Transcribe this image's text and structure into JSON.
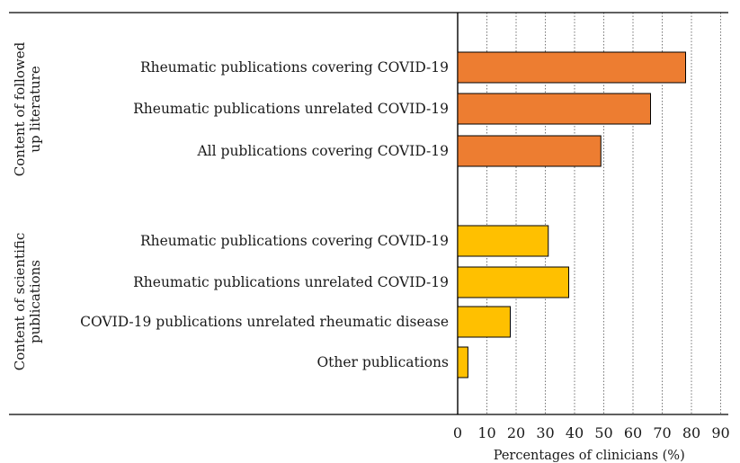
{
  "chart_data": {
    "type": "bar",
    "orientation": "horizontal",
    "xlabel": "Percentages of clinicians (%)",
    "xlim": [
      0,
      90
    ],
    "xticks": [
      0,
      10,
      20,
      30,
      40,
      50,
      60,
      70,
      80,
      90
    ],
    "grid": "vertical dotted",
    "groups": [
      {
        "label": "Content of followed up literature",
        "color": "#ED7D31",
        "items": [
          {
            "label": "Rheumatic publications covering COVID-19",
            "value": 78
          },
          {
            "label": "Rheumatic publications unrelated COVID-19",
            "value": 66
          },
          {
            "label": "All publications covering COVID-19",
            "value": 49
          }
        ]
      },
      {
        "label": "Content of scientific publications",
        "color": "#FFC000",
        "items": [
          {
            "label": "Rheumatic publications covering COVID-19",
            "value": 31
          },
          {
            "label": "Rheumatic publications unrelated COVID-19",
            "value": 38
          },
          {
            "label": "COVID-19 publications unrelated rheumatic disease",
            "value": 18
          },
          {
            "label": "Other publications",
            "value": 3.5
          }
        ]
      }
    ]
  }
}
